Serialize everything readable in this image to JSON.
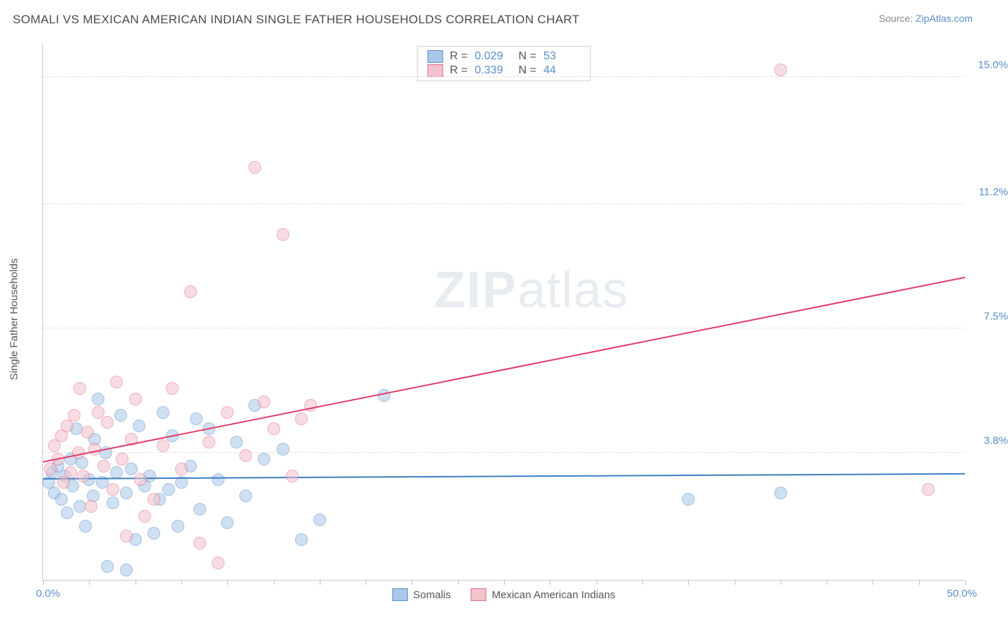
{
  "title": "SOMALI VS MEXICAN AMERICAN INDIAN SINGLE FATHER HOUSEHOLDS CORRELATION CHART",
  "source_label": "Source: ",
  "source_name": "ZipAtlas.com",
  "y_axis_label": "Single Father Households",
  "watermark_bold": "ZIP",
  "watermark_light": "atlas",
  "chart": {
    "type": "scatter",
    "xlim": [
      0,
      50
    ],
    "ylim": [
      0,
      16
    ],
    "x_min_label": "0.0%",
    "x_max_label": "50.0%",
    "y_ticks": [
      {
        "v": 3.8,
        "label": "3.8%"
      },
      {
        "v": 7.5,
        "label": "7.5%"
      },
      {
        "v": 11.2,
        "label": "11.2%"
      },
      {
        "v": 15.0,
        "label": "15.0%"
      }
    ],
    "x_tick_positions": [
      0,
      2.5,
      5,
      7.5,
      10,
      12.5,
      15,
      17.5,
      20,
      22.5,
      25,
      27.5,
      30,
      32.5,
      35,
      37.5,
      40,
      42.5,
      45,
      47.5,
      50
    ],
    "background_color": "#ffffff",
    "grid_color": "#dddddd",
    "axis_color": "#c8c8c8",
    "point_radius": 9,
    "point_opacity": 0.55,
    "series": [
      {
        "name": "Somalis",
        "fill": "#a9c7e8",
        "stroke": "#5a8fc8",
        "r_label": "R = ",
        "r_value": "0.029",
        "n_label": "N = ",
        "n_value": "53",
        "trend": {
          "x1": 0,
          "y1": 3.0,
          "x2": 50,
          "y2": 3.15,
          "color": "#3b7fc4",
          "width": 2
        },
        "points": [
          [
            0.3,
            2.9
          ],
          [
            0.5,
            3.2
          ],
          [
            0.6,
            2.6
          ],
          [
            0.8,
            3.4
          ],
          [
            1.0,
            2.4
          ],
          [
            1.2,
            3.1
          ],
          [
            1.3,
            2.0
          ],
          [
            1.5,
            3.6
          ],
          [
            1.6,
            2.8
          ],
          [
            1.8,
            4.5
          ],
          [
            2.0,
            2.2
          ],
          [
            2.1,
            3.5
          ],
          [
            2.3,
            1.6
          ],
          [
            2.5,
            3.0
          ],
          [
            2.7,
            2.5
          ],
          [
            2.8,
            4.2
          ],
          [
            3.0,
            5.4
          ],
          [
            3.2,
            2.9
          ],
          [
            3.4,
            3.8
          ],
          [
            3.5,
            0.4
          ],
          [
            3.8,
            2.3
          ],
          [
            4.0,
            3.2
          ],
          [
            4.2,
            4.9
          ],
          [
            4.5,
            2.6
          ],
          [
            4.8,
            3.3
          ],
          [
            5.0,
            1.2
          ],
          [
            5.2,
            4.6
          ],
          [
            5.5,
            2.8
          ],
          [
            5.8,
            3.1
          ],
          [
            6.0,
            1.4
          ],
          [
            6.3,
            2.4
          ],
          [
            6.5,
            5.0
          ],
          [
            6.8,
            2.7
          ],
          [
            7.0,
            4.3
          ],
          [
            7.3,
            1.6
          ],
          [
            7.5,
            2.9
          ],
          [
            8.0,
            3.4
          ],
          [
            8.3,
            4.8
          ],
          [
            8.5,
            2.1
          ],
          [
            9.0,
            4.5
          ],
          [
            9.5,
            3.0
          ],
          [
            10.0,
            1.7
          ],
          [
            10.5,
            4.1
          ],
          [
            11.0,
            2.5
          ],
          [
            11.5,
            5.2
          ],
          [
            12.0,
            3.6
          ],
          [
            13.0,
            3.9
          ],
          [
            14.0,
            1.2
          ],
          [
            15.0,
            1.8
          ],
          [
            18.5,
            5.5
          ],
          [
            35.0,
            2.4
          ],
          [
            40.0,
            2.6
          ],
          [
            4.5,
            0.3
          ]
        ]
      },
      {
        "name": "Mexican American Indians",
        "fill": "#f2c3cd",
        "stroke": "#e66a88",
        "r_label": "R = ",
        "r_value": "0.339",
        "n_label": "N = ",
        "n_value": "44",
        "trend": {
          "x1": 0,
          "y1": 3.5,
          "x2": 50,
          "y2": 9.0,
          "color": "#e23d6a",
          "width": 2
        },
        "points": [
          [
            0.4,
            3.3
          ],
          [
            0.6,
            4.0
          ],
          [
            0.8,
            3.6
          ],
          [
            1.0,
            4.3
          ],
          [
            1.1,
            2.9
          ],
          [
            1.3,
            4.6
          ],
          [
            1.5,
            3.2
          ],
          [
            1.7,
            4.9
          ],
          [
            1.9,
            3.8
          ],
          [
            2.0,
            5.7
          ],
          [
            2.2,
            3.1
          ],
          [
            2.4,
            4.4
          ],
          [
            2.6,
            2.2
          ],
          [
            2.8,
            3.9
          ],
          [
            3.0,
            5.0
          ],
          [
            3.3,
            3.4
          ],
          [
            3.5,
            4.7
          ],
          [
            3.8,
            2.7
          ],
          [
            4.0,
            5.9
          ],
          [
            4.3,
            3.6
          ],
          [
            4.5,
            1.3
          ],
          [
            4.8,
            4.2
          ],
          [
            5.0,
            5.4
          ],
          [
            5.3,
            3.0
          ],
          [
            5.5,
            1.9
          ],
          [
            6.0,
            2.4
          ],
          [
            6.5,
            4.0
          ],
          [
            7.0,
            5.7
          ],
          [
            7.5,
            3.3
          ],
          [
            8.0,
            8.6
          ],
          [
            8.5,
            1.1
          ],
          [
            9.0,
            4.1
          ],
          [
            9.5,
            0.5
          ],
          [
            10.0,
            5.0
          ],
          [
            11.0,
            3.7
          ],
          [
            11.5,
            12.3
          ],
          [
            12.0,
            5.3
          ],
          [
            12.5,
            4.5
          ],
          [
            13.0,
            10.3
          ],
          [
            13.5,
            3.1
          ],
          [
            14.0,
            4.8
          ],
          [
            14.5,
            5.2
          ],
          [
            48.0,
            2.7
          ],
          [
            40.0,
            15.2
          ]
        ]
      }
    ]
  },
  "legend_bottom": [
    {
      "label": "Somalis",
      "fill": "#a9c7e8",
      "stroke": "#5a8fc8"
    },
    {
      "label": "Mexican American Indians",
      "fill": "#f2c3cd",
      "stroke": "#e66a88"
    }
  ]
}
